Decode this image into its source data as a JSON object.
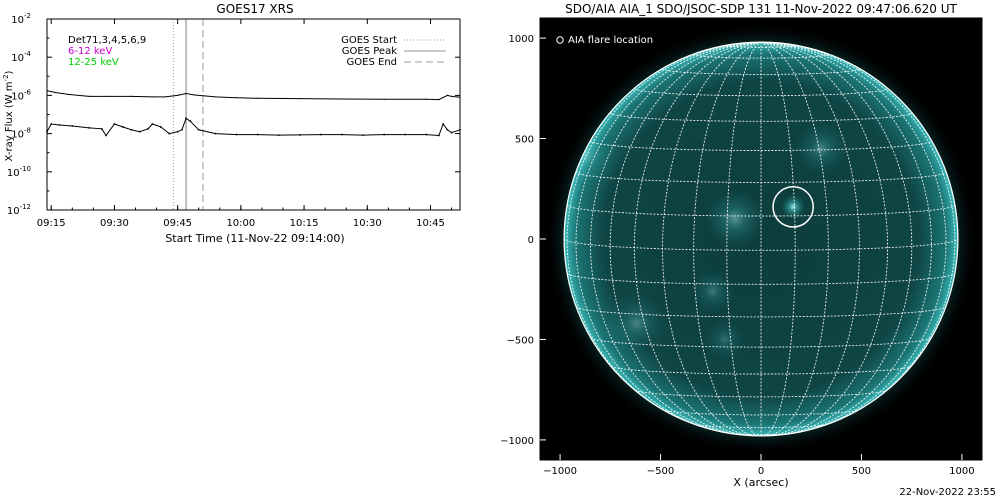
{
  "footer_stamp": "22-Nov-2022 23:55",
  "chart_data": [
    {
      "type": "line",
      "title": "GOES17 XRS",
      "xlabel": "Start Time (11-Nov-22 09:14:00)",
      "ylabel": "X-ray Flux (W m^-2)",
      "ylabel_parts": {
        "main": "X-ray Flux (W m",
        "exp": "-2",
        "close": ")"
      },
      "x_unit": "minutes from 09:14:00",
      "xlim": [
        0,
        98
      ],
      "y_log_scale": true,
      "ylim": [
        1e-12,
        0.01
      ],
      "x_ticks": [
        {
          "value": 1,
          "label": "09:15"
        },
        {
          "value": 16,
          "label": "09:30"
        },
        {
          "value": 31,
          "label": "09:45"
        },
        {
          "value": 46,
          "label": "10:00"
        },
        {
          "value": 61,
          "label": "10:15"
        },
        {
          "value": 76,
          "label": "10:30"
        },
        {
          "value": 91,
          "label": "10:45"
        }
      ],
      "y_ticks": [
        {
          "exp": -2,
          "label": "10",
          "sup": "-2"
        },
        {
          "exp": -4,
          "label": "10",
          "sup": "-4"
        },
        {
          "exp": -6,
          "label": "10",
          "sup": "-6"
        },
        {
          "exp": -8,
          "label": "10",
          "sup": "-8"
        },
        {
          "exp": -10,
          "label": "10",
          "sup": "-10"
        },
        {
          "exp": -12,
          "label": "10",
          "sup": "-12"
        }
      ],
      "info_labels": [
        {
          "text": "Det71,3,4,5,6,9",
          "color": "#000000"
        },
        {
          "text": "6-12 keV",
          "color": "#cc00cc"
        },
        {
          "text": "12-25 keV",
          "color": "#00cc00"
        }
      ],
      "legend": [
        {
          "label": "GOES Start",
          "style": "dotted",
          "color": "#999999"
        },
        {
          "label": "GOES Peak",
          "style": "solid",
          "color": "#999999"
        },
        {
          "label": "GOES End",
          "style": "dashed",
          "color": "#999999"
        }
      ],
      "markers": [
        {
          "name": "GOES Start",
          "x": 30,
          "style": "dotted"
        },
        {
          "name": "GOES Peak",
          "x": 33,
          "style": "solid"
        },
        {
          "name": "GOES End",
          "x": 37,
          "style": "dashed"
        }
      ],
      "series": [
        {
          "name": "6-12 keV",
          "log_values": true,
          "x": [
            0,
            2,
            5,
            10,
            15,
            20,
            25,
            28,
            31,
            33,
            35,
            40,
            45,
            50,
            60,
            70,
            80,
            90,
            93,
            95,
            96,
            98
          ],
          "values": [
            -5.75,
            -5.85,
            -5.95,
            -6.05,
            -6.05,
            -6.05,
            -6.08,
            -6.08,
            -6.0,
            -5.9,
            -5.98,
            -6.08,
            -6.12,
            -6.15,
            -6.17,
            -6.19,
            -6.2,
            -6.2,
            -6.22,
            -6.0,
            -6.05,
            -6.1
          ]
        },
        {
          "name": "12-25 keV",
          "log_values": true,
          "x": [
            0,
            1,
            3,
            6,
            10,
            13,
            14,
            16,
            18,
            20,
            22,
            24,
            25,
            27,
            29,
            31,
            32,
            33,
            34,
            36,
            40,
            45,
            50,
            55,
            60,
            65,
            70,
            75,
            80,
            85,
            90,
            93,
            94,
            95,
            96,
            98
          ],
          "values": [
            -7.9,
            -7.5,
            -7.55,
            -7.6,
            -7.7,
            -7.75,
            -8.1,
            -7.5,
            -7.65,
            -7.8,
            -7.9,
            -7.75,
            -7.5,
            -7.65,
            -8.0,
            -7.9,
            -7.8,
            -7.2,
            -7.35,
            -7.8,
            -8.0,
            -8.05,
            -8.05,
            -8.08,
            -8.07,
            -8.05,
            -8.05,
            -8.08,
            -8.05,
            -8.05,
            -8.05,
            -8.1,
            -7.5,
            -7.8,
            -7.95,
            -7.8
          ]
        }
      ]
    },
    {
      "type": "heatmap",
      "title": "SDO/AIA AIA_1 SDO/JSOC-SDP 131 11-Nov-2022 09:47:06.620 UT",
      "xlabel": "X (arcsec)",
      "ylabel": "",
      "xlim": [
        -1100,
        1100
      ],
      "ylim": [
        -1100,
        1100
      ],
      "x_ticks": [
        -1000,
        -500,
        0,
        500,
        1000
      ],
      "y_ticks": [
        -1000,
        -500,
        0,
        500,
        1000
      ],
      "solar_radius_arcsec": 980,
      "grid_spacing_deg": 10,
      "colormap": [
        "#000000",
        "#0b3a3a",
        "#1f8f8f",
        "#9ff0f0"
      ],
      "legend_label": "AIA flare location",
      "flare_location": {
        "x": 160,
        "y": 160,
        "radius_arcsec": 100
      },
      "bright_regions": [
        {
          "x": 160,
          "y": 160,
          "r": 60,
          "intensity": 0.9
        },
        {
          "x": -130,
          "y": 100,
          "r": 150,
          "intensity": 0.45
        },
        {
          "x": 300,
          "y": 450,
          "r": 130,
          "intensity": 0.35
        },
        {
          "x": -880,
          "y": 420,
          "r": 160,
          "intensity": 0.35
        },
        {
          "x": -620,
          "y": -420,
          "r": 150,
          "intensity": 0.35
        },
        {
          "x": -240,
          "y": -260,
          "r": 110,
          "intensity": 0.3
        },
        {
          "x": -180,
          "y": -500,
          "r": 100,
          "intensity": 0.25
        }
      ]
    }
  ]
}
